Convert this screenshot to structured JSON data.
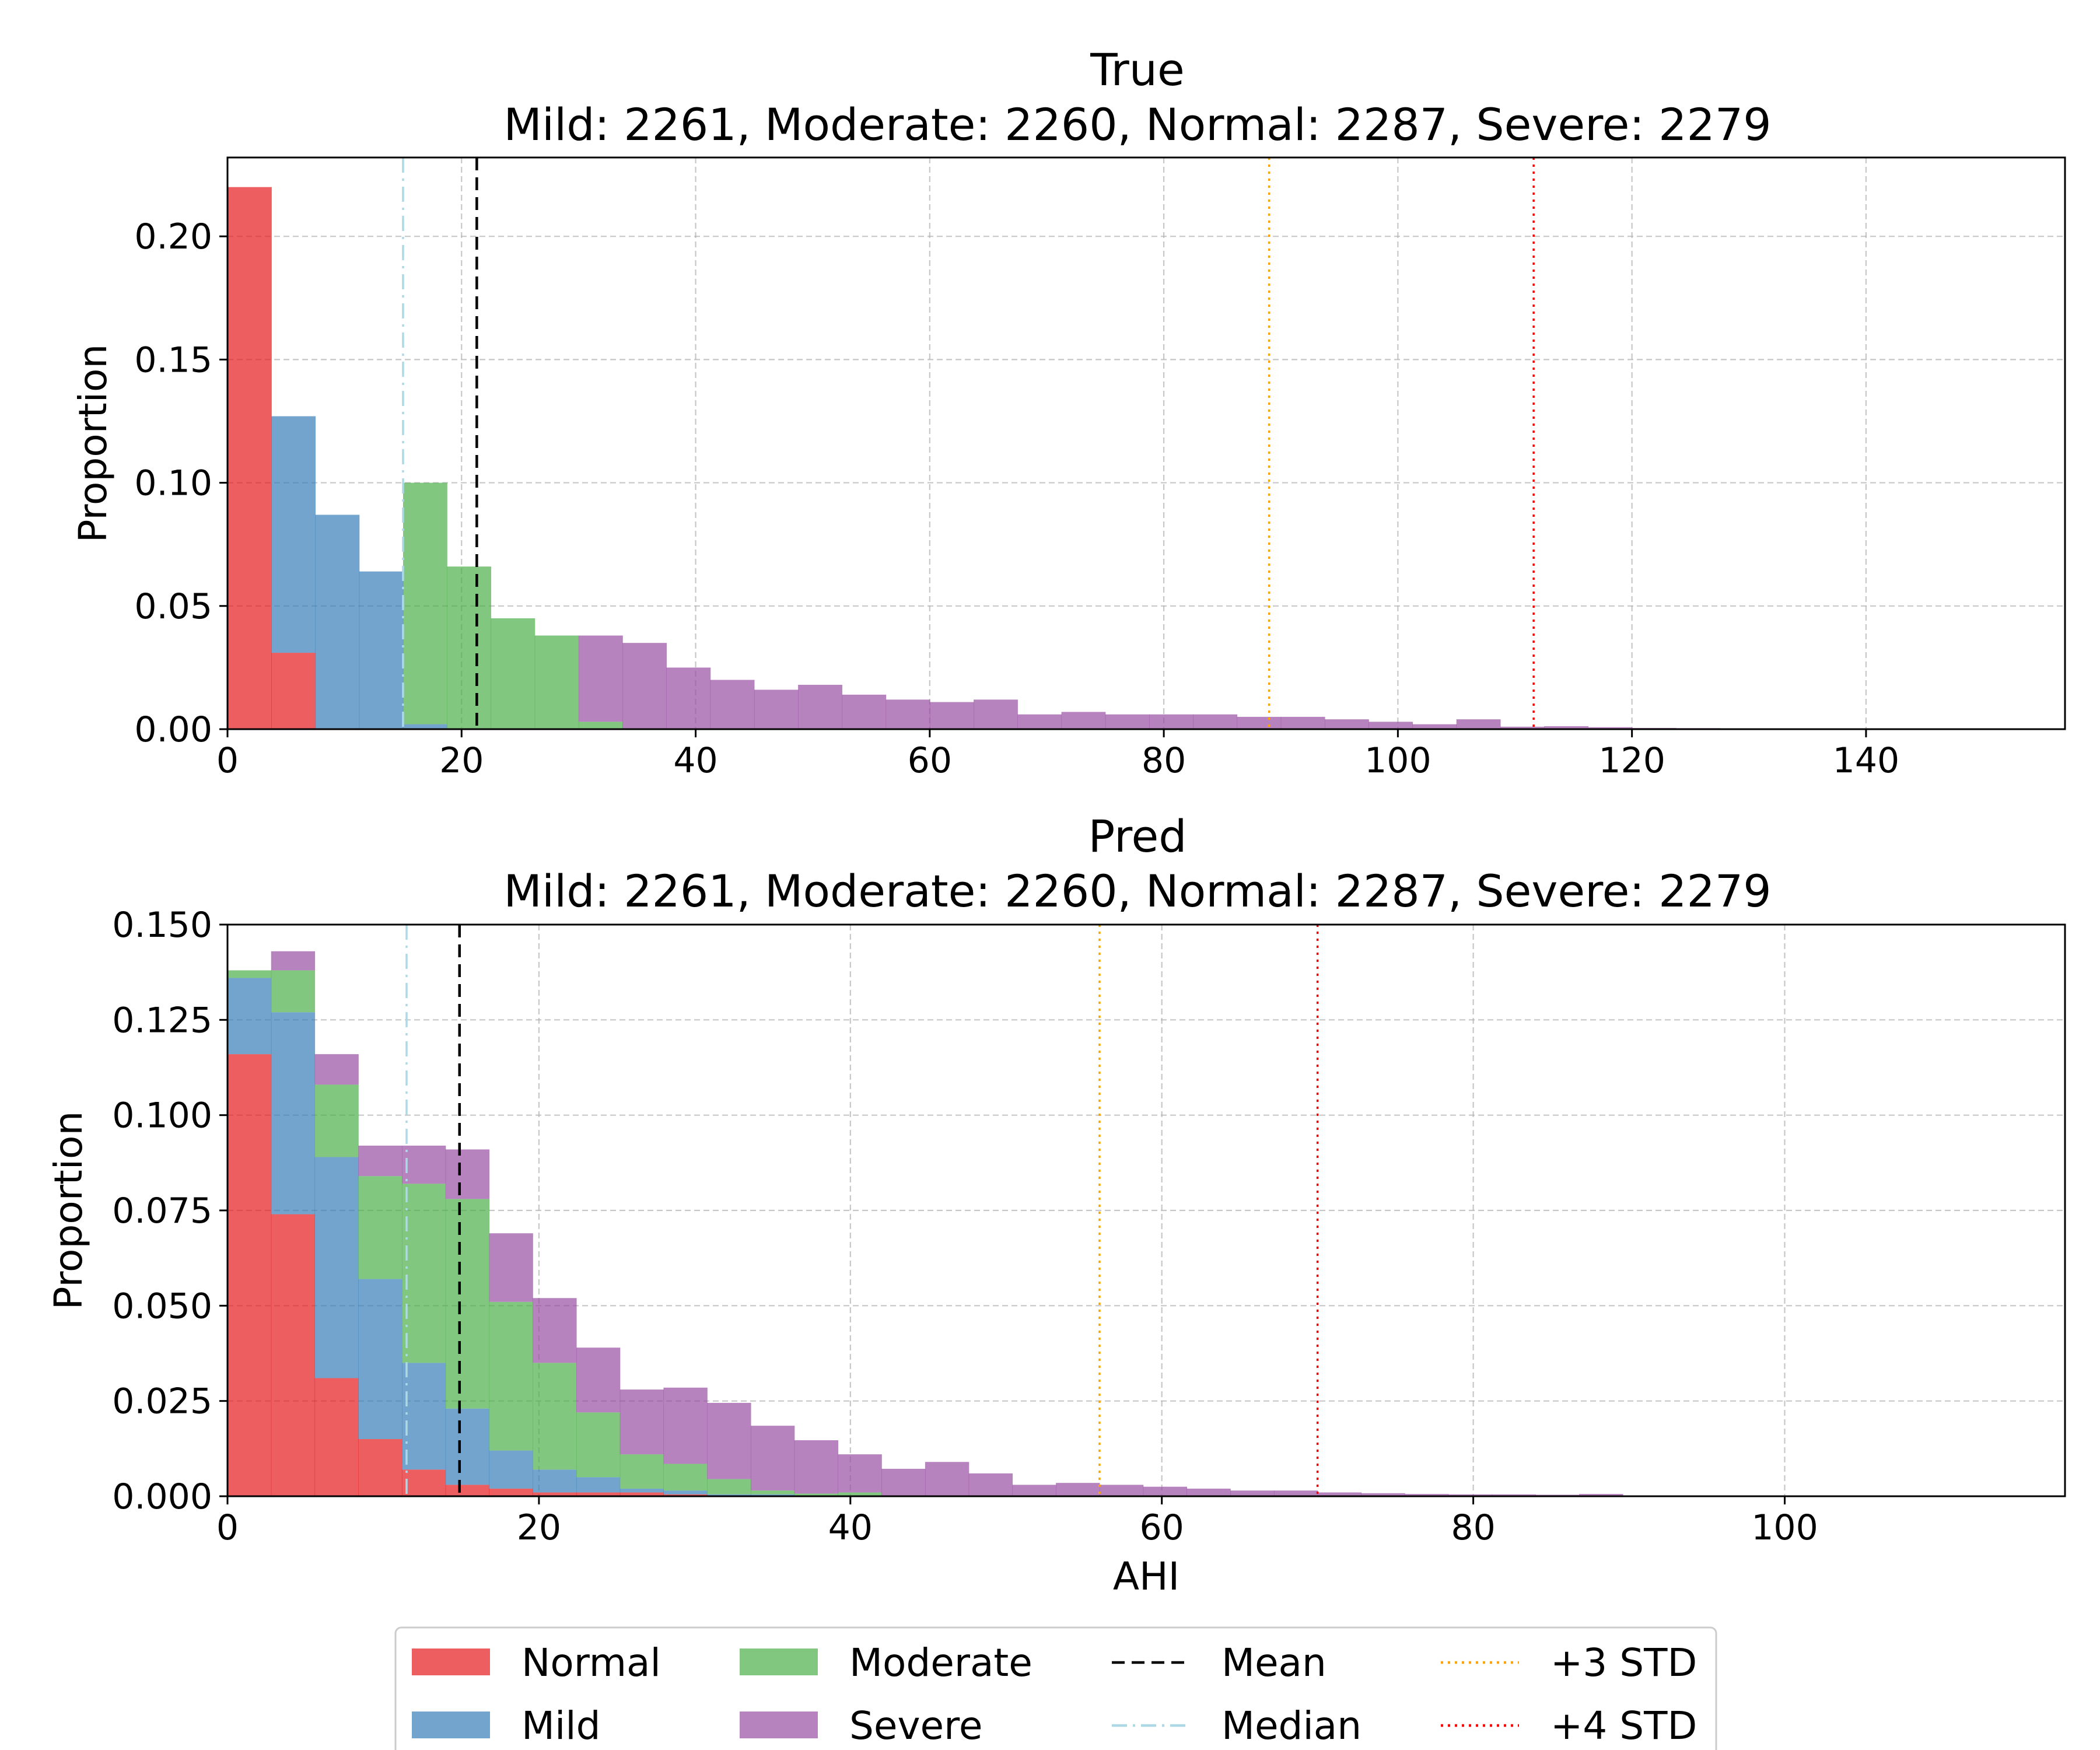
{
  "colors": {
    "normal": "#E41A1C",
    "mild": "#377EB8",
    "moderate": "#4DAF4A",
    "severe": "#984EA3",
    "mean": "#000000",
    "median": "#ADD8E6",
    "std3": "#FFA500",
    "std4": "#FF0000",
    "grid": "#B0B0B0"
  },
  "legend": {
    "placement": "bottom-center",
    "items": [
      {
        "key": "normal",
        "label": "Normal",
        "kind": "patch"
      },
      {
        "key": "mild",
        "label": "Mild",
        "kind": "patch"
      },
      {
        "key": "moderate",
        "label": "Moderate",
        "kind": "patch"
      },
      {
        "key": "severe",
        "label": "Severe",
        "kind": "patch"
      },
      {
        "key": "mean",
        "label": "Mean",
        "kind": "line",
        "dash": "dashed"
      },
      {
        "key": "median",
        "label": "Median",
        "kind": "line",
        "dash": "dashdot"
      },
      {
        "key": "std3",
        "label": "+3 STD",
        "kind": "line",
        "dash": "dotted"
      },
      {
        "key": "std4",
        "label": "+4 STD",
        "kind": "line",
        "dash": "dotted"
      }
    ]
  },
  "chart_data": [
    {
      "type": "bar",
      "stacked": true,
      "histogram": true,
      "title": "True",
      "subtitle": "Mild: 2261, Moderate: 2260, Normal: 2287, Severe: 2279",
      "xlabel": "",
      "ylabel": "Proportion",
      "xlim": [
        0,
        157
      ],
      "ylim": [
        0,
        0.232
      ],
      "xticks": [
        0,
        20,
        40,
        60,
        80,
        100,
        120,
        140
      ],
      "yticks": [
        0.0,
        0.05,
        0.1,
        0.15,
        0.2
      ],
      "ytick_format": 2,
      "grid": true,
      "bin_edges": [
        0,
        3.75,
        7.5,
        11.25,
        15,
        18.75,
        22.5,
        26.25,
        30,
        33.75,
        37.5,
        41.25,
        45,
        48.75,
        52.5,
        56.25,
        60,
        63.75,
        67.5,
        71.25,
        75,
        78.75,
        82.5,
        86.25,
        90,
        93.75,
        97.5,
        101.25,
        105,
        108.75,
        112.5,
        116.25,
        120,
        123.75,
        127.5,
        131.25,
        135,
        138.75,
        142.5,
        146.25,
        150,
        153.75
      ],
      "series": [
        {
          "name": "Normal",
          "key": "normal",
          "values": [
            0.22,
            0.031,
            0,
            0,
            0,
            0,
            0,
            0,
            0,
            0,
            0,
            0,
            0,
            0,
            0,
            0,
            0,
            0,
            0,
            0,
            0,
            0,
            0,
            0,
            0,
            0,
            0,
            0,
            0,
            0,
            0,
            0,
            0,
            0,
            0,
            0,
            0,
            0,
            0,
            0,
            0
          ]
        },
        {
          "name": "Mild",
          "key": "mild",
          "values": [
            0,
            0.096,
            0.087,
            0.064,
            0.002,
            0,
            0,
            0,
            0,
            0,
            0,
            0,
            0,
            0,
            0,
            0,
            0,
            0,
            0,
            0,
            0,
            0,
            0,
            0,
            0,
            0,
            0,
            0,
            0,
            0,
            0,
            0,
            0,
            0,
            0,
            0,
            0,
            0,
            0,
            0,
            0
          ]
        },
        {
          "name": "Moderate",
          "key": "moderate",
          "values": [
            0,
            0,
            0,
            0,
            0.098,
            0.066,
            0.045,
            0.038,
            0.003,
            0,
            0,
            0,
            0,
            0,
            0,
            0,
            0,
            0,
            0,
            0,
            0,
            0,
            0,
            0,
            0,
            0,
            0,
            0,
            0,
            0,
            0,
            0,
            0,
            0,
            0,
            0,
            0,
            0,
            0,
            0,
            0
          ]
        },
        {
          "name": "Severe",
          "key": "severe",
          "values": [
            0,
            0,
            0,
            0,
            0,
            0,
            0,
            0,
            0.035,
            0.035,
            0.025,
            0.02,
            0.016,
            0.018,
            0.014,
            0.012,
            0.011,
            0.012,
            0.006,
            0.007,
            0.006,
            0.006,
            0.006,
            0.005,
            0.005,
            0.004,
            0.003,
            0.002,
            0.004,
            0.001,
            0.0012,
            0.0008,
            0.0005,
            0.0004,
            0.0003,
            0.0002,
            0.0002,
            0.0001,
            0.0001,
            0.0001,
            0.0001
          ]
        }
      ],
      "vlines": [
        {
          "key": "median",
          "x": 15.0,
          "dash": "dashdot"
        },
        {
          "key": "mean",
          "x": 21.3,
          "dash": "dashed"
        },
        {
          "key": "std3",
          "x": 89.0,
          "dash": "dotted"
        },
        {
          "key": "std4",
          "x": 111.6,
          "dash": "dotted"
        }
      ]
    },
    {
      "type": "bar",
      "stacked": true,
      "histogram": true,
      "title": "Pred",
      "subtitle": "Mild: 2261, Moderate: 2260, Normal: 2287, Severe: 2279",
      "xlabel": "AHI",
      "ylabel": "Proportion",
      "xlim": [
        0,
        118
      ],
      "ylim": [
        0,
        0.15
      ],
      "xticks": [
        0,
        20,
        40,
        60,
        80,
        100
      ],
      "yticks": [
        0.0,
        0.025,
        0.05,
        0.075,
        0.1,
        0.125,
        0.15
      ],
      "ytick_format": 3,
      "grid": true,
      "bin_edges": [
        0,
        2.8,
        5.6,
        8.4,
        11.2,
        14.0,
        16.8,
        19.6,
        22.4,
        25.2,
        28.0,
        30.8,
        33.6,
        36.4,
        39.2,
        42.0,
        44.8,
        47.6,
        50.4,
        53.2,
        56.0,
        58.8,
        61.6,
        64.4,
        67.2,
        70.0,
        72.8,
        75.6,
        78.4,
        81.2,
        84.0,
        86.8,
        89.6,
        92.4
      ],
      "series": [
        {
          "name": "Normal",
          "key": "normal",
          "values": [
            0.116,
            0.074,
            0.031,
            0.015,
            0.007,
            0.003,
            0.002,
            0.001,
            0.001,
            0.001,
            0.0005,
            0,
            0,
            0,
            0,
            0,
            0,
            0,
            0,
            0,
            0,
            0,
            0,
            0,
            0,
            0,
            0,
            0,
            0,
            0,
            0,
            0,
            0
          ]
        },
        {
          "name": "Mild",
          "key": "mild",
          "values": [
            0.02,
            0.053,
            0.058,
            0.042,
            0.028,
            0.02,
            0.01,
            0.006,
            0.004,
            0.001,
            0.001,
            0.0005,
            0.0005,
            0.0002,
            0,
            0,
            0,
            0,
            0,
            0,
            0,
            0,
            0,
            0,
            0,
            0,
            0,
            0,
            0,
            0,
            0,
            0,
            0
          ]
        },
        {
          "name": "Moderate",
          "key": "moderate",
          "values": [
            0.002,
            0.011,
            0.019,
            0.027,
            0.047,
            0.055,
            0.039,
            0.028,
            0.017,
            0.009,
            0.007,
            0.004,
            0.001,
            0.0005,
            0.001,
            0.0002,
            0,
            0,
            0,
            0,
            0,
            0,
            0,
            0,
            0,
            0,
            0,
            0,
            0,
            0,
            0,
            0,
            0
          ]
        },
        {
          "name": "Severe",
          "key": "severe",
          "values": [
            0,
            0.005,
            0.008,
            0.008,
            0.01,
            0.013,
            0.018,
            0.017,
            0.017,
            0.017,
            0.02,
            0.02,
            0.017,
            0.014,
            0.01,
            0.007,
            0.009,
            0.006,
            0.003,
            0.0035,
            0.003,
            0.0025,
            0.002,
            0.0015,
            0.0015,
            0.001,
            0.0008,
            0.0006,
            0.0005,
            0.0005,
            0.0004,
            0.0006,
            0.0002
          ]
        }
      ],
      "vlines": [
        {
          "key": "median",
          "x": 11.5,
          "dash": "dashdot"
        },
        {
          "key": "mean",
          "x": 14.9,
          "dash": "dashed"
        },
        {
          "key": "std3",
          "x": 56.0,
          "dash": "dotted"
        },
        {
          "key": "std4",
          "x": 70.0,
          "dash": "dotted"
        }
      ]
    }
  ]
}
